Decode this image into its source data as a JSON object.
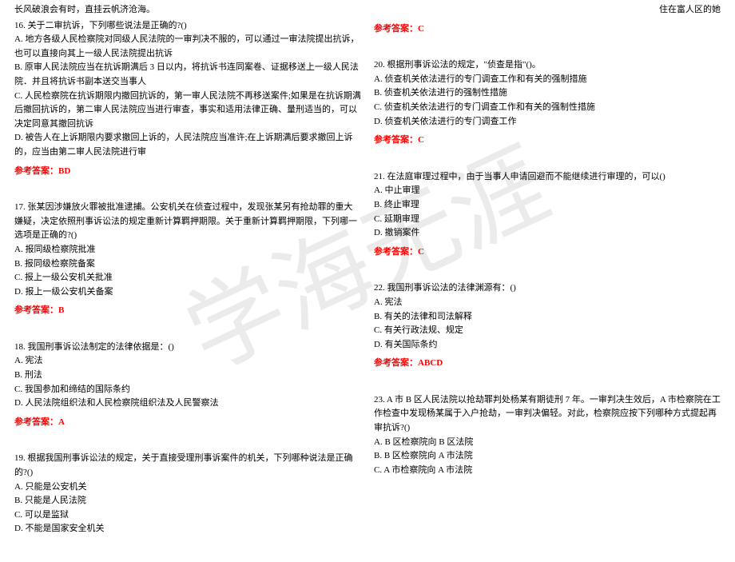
{
  "watermark": "学海无涯",
  "header": {
    "left": "长风破浪会有时，直挂云帆济沧海。",
    "right": "住在富人区的她"
  },
  "left_column": [
    {
      "title": "16. 关于二审抗诉，下列哪些说法是正确的?()",
      "options": [
        "A. 地方各级人民检察院对同级人民法院的一审判决不服的，可以通过一审法院提出抗诉，也可以直接向其上一级人民法院提出抗诉",
        "B. 原审人民法院应当在抗诉期满后 3 日以内，将抗诉书连同案卷、证据移送上一级人民法院．并且将抗诉书副本送交当事人",
        "C. 人民检察院在抗诉期限内撤回抗诉的，第一审人民法院不再移送案件;如果是在抗诉期满后撤回抗诉的，第二审人民法院应当进行审查，事实和适用法律正确、量刑适当的，可以决定同意其撤回抗诉",
        "D. 被告人在上诉期限内要求撤回上诉的，人民法院应当准许;在上诉期满后要求撤回上诉的，应当由第二审人民法院进行审"
      ],
      "answer": "BD"
    },
    {
      "title": "17. 张某因涉嫌放火罪被批准逮捕。公安机关在侦查过程中，发现张某另有抢劫罪的重大嫌疑，决定依照刑事诉讼法的规定重新计算羁押期限。关于重新计算羁押期限，下列哪一选项是正确的?()",
      "options": [
        "A. 报同级检察院批准",
        "B. 报同级检察院备案",
        "C. 报上一级公安机关批准",
        "D. 报上一级公安机关备案"
      ],
      "answer": "B"
    },
    {
      "title": "18. 我国刑事诉讼法制定的法律依据是：()",
      "options": [
        "A. 宪法",
        "B. 刑法",
        "C. 我国参加和缔结的国际条约",
        "D. 人民法院组织法和人民检察院组织法及人民警察法"
      ],
      "answer": "A"
    },
    {
      "title": "19. 根据我国刑事诉讼法的规定，关于直接受理刑事诉案件的机关，下列哪种说法是正确的?()",
      "options": [
        "A. 只能是公安机关",
        "B. 只能是人民法院",
        "C. 可以是监狱",
        "D. 不能是国家安全机关"
      ],
      "answer": ""
    }
  ],
  "right_column": [
    {
      "title": "",
      "options": [],
      "answer": "C"
    },
    {
      "title": "20. 根据刑事诉讼法的规定，\"侦查是指\"()。",
      "options": [
        "A. 侦查机关依法进行的专门调查工作和有关的强制措施",
        "B. 侦查机关依法进行的强制性措施",
        "C. 侦查机关依法进行的专门调查工作和有关的强制性措施",
        "D. 侦查机关依法进行的专门调查工作"
      ],
      "answer": "C"
    },
    {
      "title": "21. 在法庭审理过程中，由于当事人申请回避而不能继续进行审理的，可以()",
      "options": [
        "A. 中止审理",
        "B. 终止审理",
        "C. 延期审理",
        "D. 撤销案件"
      ],
      "answer": "C"
    },
    {
      "title": "22. 我国刑事诉讼法的法律渊源有：()",
      "options": [
        "A. 宪法",
        "B. 有关的法律和司法解释",
        "C. 有关行政法规、规定",
        "D. 有关国际条约"
      ],
      "answer": "ABCD"
    },
    {
      "title": "23. A 市 B 区人民法院以抢劫罪判处杨某有期徒刑 7 年。一审判决生效后，A 市检察院在工作检查中发现杨某属于入户抢劫，一审判决偏轻。对此，检察院应按下列哪种方式提起再审抗诉?()",
      "options": [
        "A. B 区检察院向 B 区法院",
        "B. B 区检察院向 A 市法院",
        "C. A 市检察院向 A 市法院"
      ],
      "answer": ""
    }
  ],
  "answer_label": "参考答案："
}
